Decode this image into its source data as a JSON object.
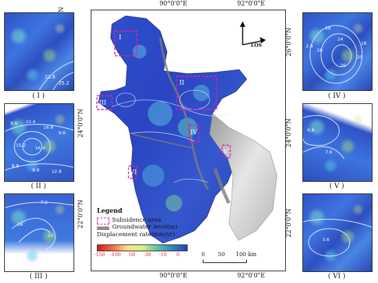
{
  "top_ticks": [
    "90°0'0\"E",
    "92°0'0\"E"
  ],
  "bottom_ticks": [
    "90°0'0\"E",
    "92°0'0\"E"
  ],
  "left_ticks": [
    "26°0'0\"N",
    "24°0'0\"N",
    "22°0'0\"N"
  ],
  "right_ticks": [
    "26°0'0\"N",
    "24°0'0\"N",
    "22°0'0\"N"
  ],
  "panels": {
    "p1": {
      "label": "( I )",
      "contours": [
        "21.6",
        "25.2"
      ]
    },
    "p2": {
      "label": "( II )",
      "contours": [
        "9.6",
        "10.4",
        "16.8",
        "9.6",
        "15.2",
        "16.4",
        "8.8",
        "8.8",
        "12.8"
      ]
    },
    "p3": {
      "label": "( III )",
      "contours": [
        "7.2",
        "14",
        "10"
      ]
    },
    "p4": {
      "label": "( IV )",
      "contours": [
        "2.8",
        "28",
        "26",
        "24",
        "26",
        "20",
        "18"
      ]
    },
    "p5": {
      "label": "( V )",
      "contours": [
        "6.8",
        "7.6"
      ]
    },
    "p6": {
      "label": "( VI )",
      "contours": [
        "3.6"
      ]
    }
  },
  "map_subsidence_labels": [
    "I",
    "II",
    "III",
    "IV",
    "V",
    "VI"
  ],
  "compass": {
    "los": "LOS"
  },
  "legend": {
    "title": "Legend",
    "subsidence": "Subsidence area",
    "groundwater": "Groundwater level(m)",
    "displacement": "Displacement rate(mm/yr)",
    "colorbar_ticks": [
      "-150",
      "-100",
      "-50",
      "-30",
      "-10",
      "0"
    ],
    "colors": [
      "#d7191c",
      "#f46d43",
      "#fee090",
      "#d9ef8b",
      "#66c2a5",
      "#3288bd",
      "#2b3fb5"
    ]
  },
  "scalebar": {
    "labels": [
      "0",
      "50",
      "100 km"
    ]
  }
}
